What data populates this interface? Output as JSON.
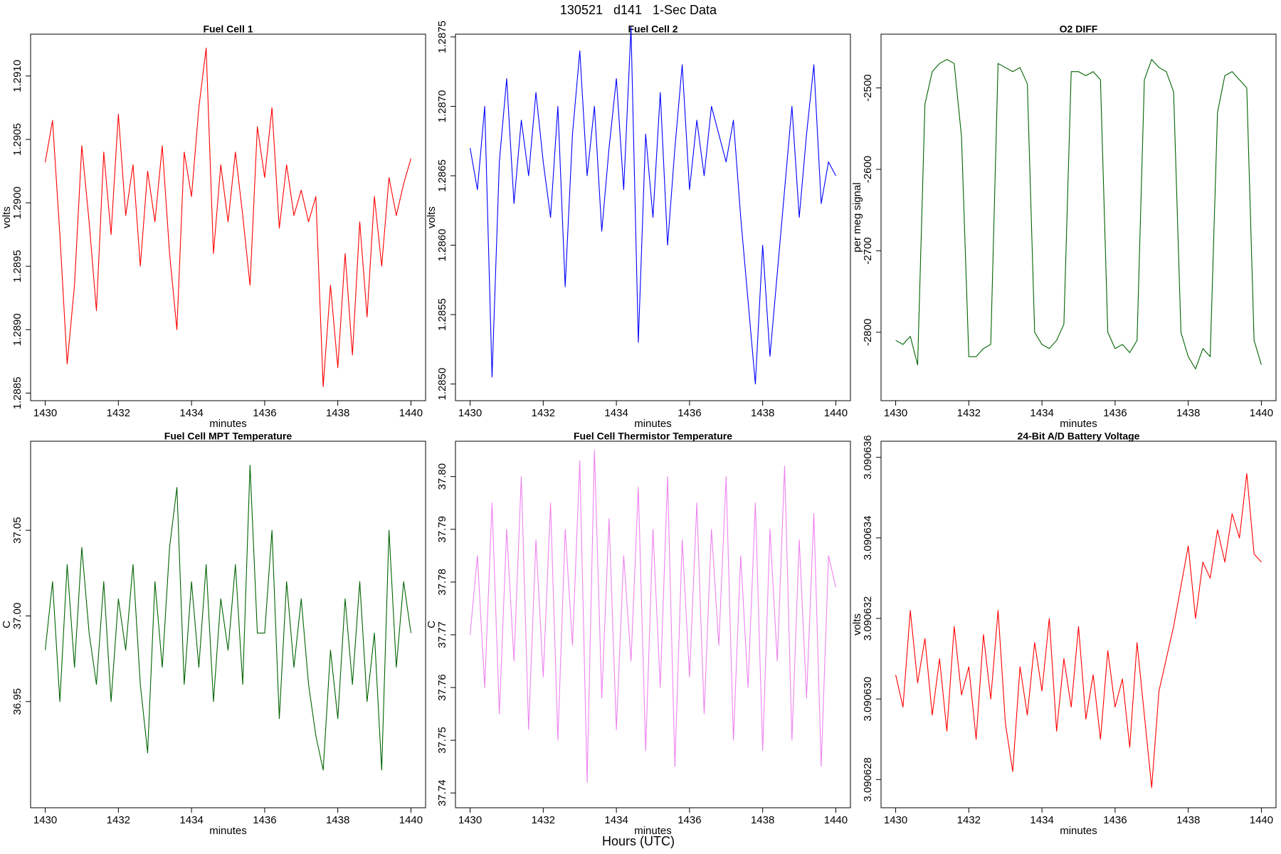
{
  "title": "130521   d141   1-Sec Data",
  "footer": "Hours (UTC)",
  "chart_data": [
    {
      "type": "line",
      "title": "Fuel Cell 1",
      "xlabel": "minutes",
      "ylabel": "volts",
      "color": "#ff0000",
      "xlim": [
        1429.6,
        1440.4
      ],
      "xticks": [
        1430,
        1432,
        1434,
        1436,
        1438,
        1440
      ],
      "ylim": [
        1.28844,
        1.29133
      ],
      "yticks": [
        1.2885,
        {
          "value": 1.289,
          "label": "1.2890"
        },
        1.2895,
        {
          "value": 1.29,
          "label": "1.2900"
        },
        1.2905,
        {
          "value": 1.291,
          "label": "1.2910"
        }
      ],
      "x": [
        1430.0,
        1430.2,
        1430.4,
        1430.6,
        1430.8,
        1431.0,
        1431.2,
        1431.4,
        1431.6,
        1431.8,
        1432.0,
        1432.2,
        1432.4,
        1432.6,
        1432.8,
        1433.0,
        1433.2,
        1433.4,
        1433.6,
        1433.8,
        1434.0,
        1434.2,
        1434.4,
        1434.6,
        1434.8,
        1435.0,
        1435.2,
        1435.4,
        1435.6,
        1435.8,
        1436.0,
        1436.2,
        1436.4,
        1436.6,
        1436.8,
        1437.0,
        1437.2,
        1437.4,
        1437.6,
        1437.8,
        1438.0,
        1438.2,
        1438.4,
        1438.6,
        1438.8,
        1439.0,
        1439.2,
        1439.4,
        1439.6,
        1439.8,
        1440.0
      ],
      "values": [
        1.29032,
        1.29065,
        1.28975,
        1.28873,
        1.28935,
        1.29045,
        1.28985,
        1.28915,
        1.2904,
        1.28975,
        1.2907,
        1.2899,
        1.2903,
        1.2895,
        1.29025,
        1.28985,
        1.29045,
        1.2896,
        1.289,
        1.2904,
        1.29005,
        1.29075,
        1.29122,
        1.2896,
        1.2903,
        1.28985,
        1.2904,
        1.2899,
        1.28935,
        1.2906,
        1.2902,
        1.29075,
        1.2898,
        1.2903,
        1.2899,
        1.2901,
        1.28985,
        1.29005,
        1.28855,
        1.28935,
        1.2887,
        1.2896,
        1.2888,
        1.28985,
        1.2891,
        1.29005,
        1.2895,
        1.2902,
        1.2899,
        1.29015,
        1.29035
      ]
    },
    {
      "type": "line",
      "title": "Fuel Cell 2",
      "xlabel": "minutes",
      "ylabel": "volts",
      "color": "#0000ff",
      "xlim": [
        1429.6,
        1440.4
      ],
      "xticks": [
        1430,
        1432,
        1434,
        1436,
        1438,
        1440
      ],
      "ylim": [
        1.28488,
        1.28752
      ],
      "yticks": [
        {
          "value": 1.285,
          "label": "1.2850"
        },
        1.2855,
        {
          "value": 1.286,
          "label": "1.2860"
        },
        1.2865,
        {
          "value": 1.287,
          "label": "1.2870"
        },
        1.2875
      ],
      "x": [
        1430.0,
        1430.2,
        1430.4,
        1430.6,
        1430.8,
        1431.0,
        1431.2,
        1431.4,
        1431.6,
        1431.8,
        1432.0,
        1432.2,
        1432.4,
        1432.6,
        1432.8,
        1433.0,
        1433.2,
        1433.4,
        1433.6,
        1433.8,
        1434.0,
        1434.2,
        1434.4,
        1434.6,
        1434.8,
        1435.0,
        1435.2,
        1435.4,
        1435.6,
        1435.8,
        1436.0,
        1436.2,
        1436.4,
        1436.6,
        1436.8,
        1437.0,
        1437.2,
        1437.4,
        1437.6,
        1437.8,
        1438.0,
        1438.2,
        1438.4,
        1438.6,
        1438.8,
        1439.0,
        1439.2,
        1439.4,
        1439.6,
        1439.8,
        1440.0
      ],
      "values": [
        1.2867,
        1.2864,
        1.287,
        1.28505,
        1.2866,
        1.2872,
        1.2863,
        1.2869,
        1.2865,
        1.2871,
        1.2866,
        1.2862,
        1.287,
        1.2857,
        1.2868,
        1.2874,
        1.2865,
        1.287,
        1.2861,
        1.2867,
        1.2872,
        1.2864,
        1.28757,
        1.2853,
        1.2868,
        1.2862,
        1.2871,
        1.286,
        1.2867,
        1.2873,
        1.2864,
        1.2869,
        1.2865,
        1.287,
        1.2868,
        1.2866,
        1.2869,
        1.2862,
        1.2856,
        1.285,
        1.286,
        1.2852,
        1.2858,
        1.2864,
        1.287,
        1.2862,
        1.2868,
        1.2873,
        1.2863,
        1.2866,
        1.2865
      ]
    },
    {
      "type": "line",
      "title": "O2 DIFF",
      "xlabel": "minutes",
      "ylabel": "per meg signal",
      "color": "#006400",
      "xlim": [
        1429.6,
        1440.4
      ],
      "xticks": [
        1430,
        1432,
        1434,
        1436,
        1438,
        1440
      ],
      "ylim": [
        -2884,
        -2434
      ],
      "yticks": [
        -2800,
        -2700,
        -2600,
        -2500
      ],
      "x": [
        1430.0,
        1430.2,
        1430.4,
        1430.6,
        1430.8,
        1431.0,
        1431.2,
        1431.4,
        1431.6,
        1431.8,
        1432.0,
        1432.2,
        1432.4,
        1432.6,
        1432.8,
        1433.0,
        1433.2,
        1433.4,
        1433.6,
        1433.8,
        1434.0,
        1434.2,
        1434.4,
        1434.6,
        1434.8,
        1435.0,
        1435.2,
        1435.4,
        1435.6,
        1435.8,
        1436.0,
        1436.2,
        1436.4,
        1436.6,
        1436.8,
        1437.0,
        1437.2,
        1437.4,
        1437.6,
        1437.8,
        1438.0,
        1438.2,
        1438.4,
        1438.6,
        1438.8,
        1439.0,
        1439.2,
        1439.4,
        1439.6,
        1439.8,
        1440.0
      ],
      "values": [
        -2810,
        -2815,
        -2805,
        -2840,
        -2520,
        -2480,
        -2470,
        -2465,
        -2470,
        -2560,
        -2830,
        -2830,
        -2820,
        -2815,
        -2470,
        -2475,
        -2480,
        -2475,
        -2495,
        -2800,
        -2815,
        -2820,
        -2810,
        -2790,
        -2480,
        -2480,
        -2485,
        -2480,
        -2490,
        -2800,
        -2820,
        -2815,
        -2825,
        -2810,
        -2490,
        -2465,
        -2475,
        -2480,
        -2505,
        -2800,
        -2830,
        -2845,
        -2820,
        -2830,
        -2530,
        -2485,
        -2480,
        -2490,
        -2500,
        -2810,
        -2840
      ]
    },
    {
      "type": "line",
      "title": "Fuel Cell MPT Temperature",
      "xlabel": "minutes",
      "ylabel": "C",
      "color": "#006400",
      "xlim": [
        1429.6,
        1440.4
      ],
      "xticks": [
        1430,
        1432,
        1434,
        1436,
        1438,
        1440
      ],
      "ylim": [
        36.888,
        37.102
      ],
      "yticks": [
        36.95,
        {
          "value": 37,
          "label": "37.00"
        },
        37.05
      ],
      "x": [
        1430.0,
        1430.2,
        1430.4,
        1430.6,
        1430.8,
        1431.0,
        1431.2,
        1431.4,
        1431.6,
        1431.8,
        1432.0,
        1432.2,
        1432.4,
        1432.6,
        1432.8,
        1433.0,
        1433.2,
        1433.4,
        1433.6,
        1433.8,
        1434.0,
        1434.2,
        1434.4,
        1434.6,
        1434.8,
        1435.0,
        1435.2,
        1435.4,
        1435.6,
        1435.8,
        1436.0,
        1436.2,
        1436.4,
        1436.6,
        1436.8,
        1437.0,
        1437.2,
        1437.4,
        1437.6,
        1437.8,
        1438.0,
        1438.2,
        1438.4,
        1438.6,
        1438.8,
        1439.0,
        1439.2,
        1439.4,
        1439.6,
        1439.8,
        1440.0
      ],
      "values": [
        36.98,
        37.02,
        36.95,
        37.03,
        36.97,
        37.04,
        36.99,
        36.96,
        37.02,
        36.95,
        37.01,
        36.98,
        37.03,
        36.96,
        36.92,
        37.02,
        36.97,
        37.04,
        37.075,
        36.96,
        37.02,
        36.97,
        37.03,
        36.95,
        37.01,
        36.98,
        37.03,
        36.96,
        37.088,
        36.99,
        36.99,
        37.05,
        36.94,
        37.02,
        36.97,
        37.01,
        36.96,
        36.93,
        36.91,
        36.98,
        36.94,
        37.01,
        36.96,
        37.02,
        36.95,
        36.99,
        36.91,
        37.05,
        36.97,
        37.02,
        36.99
      ]
    },
    {
      "type": "line",
      "title": "Fuel Cell Thermistor Temperature",
      "xlabel": "minutes",
      "ylabel": "C",
      "color": "#ee82ee",
      "xlim": [
        1429.6,
        1440.4
      ],
      "xticks": [
        1430,
        1432,
        1434,
        1436,
        1438,
        1440
      ],
      "ylim": [
        37.7372,
        37.8067
      ],
      "yticks": [
        37.74,
        37.75,
        37.76,
        37.77,
        37.78,
        37.79,
        {
          "value": 37.8,
          "label": "37.80"
        }
      ],
      "x": [
        1430.0,
        1430.2,
        1430.4,
        1430.6,
        1430.8,
        1431.0,
        1431.2,
        1431.4,
        1431.6,
        1431.8,
        1432.0,
        1432.2,
        1432.4,
        1432.6,
        1432.8,
        1433.0,
        1433.2,
        1433.4,
        1433.6,
        1433.8,
        1434.0,
        1434.2,
        1434.4,
        1434.6,
        1434.8,
        1435.0,
        1435.2,
        1435.4,
        1435.6,
        1435.8,
        1436.0,
        1436.2,
        1436.4,
        1436.6,
        1436.8,
        1437.0,
        1437.2,
        1437.4,
        1437.6,
        1437.8,
        1438.0,
        1438.2,
        1438.4,
        1438.6,
        1438.8,
        1439.0,
        1439.2,
        1439.4,
        1439.6,
        1439.8,
        1440.0
      ],
      "values": [
        37.77,
        37.785,
        37.76,
        37.795,
        37.755,
        37.79,
        37.765,
        37.8,
        37.752,
        37.788,
        37.762,
        37.795,
        37.75,
        37.79,
        37.768,
        37.803,
        37.742,
        37.805,
        37.758,
        37.792,
        37.752,
        37.785,
        37.765,
        37.798,
        37.748,
        37.79,
        37.76,
        37.8,
        37.745,
        37.788,
        37.762,
        37.795,
        37.755,
        37.79,
        37.768,
        37.8,
        37.75,
        37.785,
        37.76,
        37.795,
        37.748,
        37.79,
        37.765,
        37.802,
        37.75,
        37.788,
        37.758,
        37.793,
        37.745,
        37.785,
        37.779
      ]
    },
    {
      "type": "line",
      "title": "24-Bit A/D Battery Voltage",
      "xlabel": "minutes",
      "ylabel": "volts",
      "color": "#ff0000",
      "xlim": [
        1429.6,
        1440.4
      ],
      "xticks": [
        1430,
        1432,
        1434,
        1436,
        1438,
        1440
      ],
      "ylim": [
        3.0906273,
        3.0906364
      ],
      "yticks": [
        3.090628,
        {
          "value": 3.09063,
          "label": "3.090630"
        },
        3.090632,
        3.090634,
        3.090636
      ],
      "x": [
        1430.0,
        1430.2,
        1430.4,
        1430.6,
        1430.8,
        1431.0,
        1431.2,
        1431.4,
        1431.6,
        1431.8,
        1432.0,
        1432.2,
        1432.4,
        1432.6,
        1432.8,
        1433.0,
        1433.2,
        1433.4,
        1433.6,
        1433.8,
        1434.0,
        1434.2,
        1434.4,
        1434.6,
        1434.8,
        1435.0,
        1435.2,
        1435.4,
        1435.6,
        1435.8,
        1436.0,
        1436.2,
        1436.4,
        1436.6,
        1436.8,
        1437.0,
        1437.2,
        1437.4,
        1437.6,
        1437.8,
        1438.0,
        1438.2,
        1438.4,
        1438.6,
        1438.8,
        1439.0,
        1439.2,
        1439.4,
        1439.6,
        1439.8,
        1440.0
      ],
      "values": [
        3.0906306,
        3.0906298,
        3.0906322,
        3.0906304,
        3.0906315,
        3.0906296,
        3.090631,
        3.0906292,
        3.0906318,
        3.0906301,
        3.0906308,
        3.090629,
        3.0906316,
        3.09063,
        3.0906322,
        3.0906294,
        3.0906282,
        3.0906308,
        3.0906296,
        3.0906314,
        3.0906302,
        3.090632,
        3.0906292,
        3.090631,
        3.0906298,
        3.0906318,
        3.0906295,
        3.0906306,
        3.090629,
        3.0906312,
        3.0906298,
        3.0906305,
        3.0906288,
        3.0906314,
        3.0906296,
        3.0906278,
        3.0906302,
        3.090631,
        3.0906318,
        3.0906328,
        3.0906338,
        3.090632,
        3.0906334,
        3.090633,
        3.0906342,
        3.0906334,
        3.0906346,
        3.090634,
        3.0906356,
        3.0906336,
        3.0906334
      ]
    }
  ]
}
